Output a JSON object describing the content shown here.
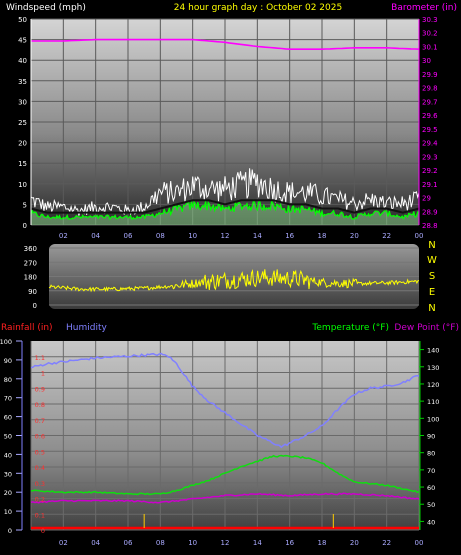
{
  "header": {
    "wind_title": "Windspeed (mph)",
    "date_title": "24 hour graph day : October 02 2025",
    "baro_title": "Barometer (in)"
  },
  "colors": {
    "bg": "#000000",
    "wind_gust": "#ffffff",
    "wind_avg": "#00ff00",
    "barometer": "#ff00ff",
    "direction": "#ffff00",
    "humidity": "#8080ff",
    "temperature": "#00cc00",
    "dewpoint": "#cc00cc",
    "rain": "#ff0000",
    "rain_ticks": "#ffcc00",
    "time_ticks": "#aaaaff"
  },
  "lower_labels": {
    "rain_title": "Rainfall (in)",
    "humidity_title": "Humidity",
    "temp_title": "Temperature (°F)",
    "dew_title": "Dew Point (°F)"
  },
  "chart_data": [
    {
      "type": "line",
      "x_ticks": [
        "02",
        "04",
        "06",
        "08",
        "10",
        "12",
        "14",
        "16",
        "18",
        "20",
        "22",
        "00"
      ],
      "y_left_ticks": [
        "0",
        "5",
        "10",
        "15",
        "20",
        "25",
        "30",
        "35",
        "40",
        "45",
        "50"
      ],
      "y_right_ticks": [
        "28.8",
        "28.9",
        "29",
        "29.1",
        "29.2",
        "29.3",
        "29.4",
        "29.5",
        "29.6",
        "29.7",
        "29.8",
        "29.9",
        "30",
        "30.1",
        "30.2",
        "30.3"
      ],
      "y_left_range": [
        0,
        50
      ],
      "y_right_range": [
        28.8,
        30.3
      ],
      "x_range": [
        0,
        24
      ],
      "series": [
        {
          "key": "gust",
          "x": [
            0,
            1,
            2,
            3,
            4,
            5,
            6,
            7,
            8,
            9,
            10,
            11,
            12,
            13,
            14,
            15,
            16,
            17,
            18,
            19,
            20,
            21,
            22,
            23,
            24
          ],
          "values": [
            7,
            5,
            5,
            4,
            5,
            5,
            4,
            5,
            9,
            9,
            11,
            10,
            10,
            11,
            12,
            10,
            9,
            9,
            8,
            7,
            6,
            7,
            6,
            6,
            7
          ]
        },
        {
          "key": "average",
          "x": [
            0,
            1,
            2,
            3,
            4,
            5,
            6,
            7,
            8,
            9,
            10,
            11,
            12,
            13,
            14,
            15,
            16,
            17,
            18,
            19,
            20,
            21,
            22,
            23,
            24
          ],
          "values": [
            3,
            2,
            2,
            2,
            2,
            2,
            2,
            2,
            3,
            4,
            5,
            5,
            4,
            5,
            5,
            5,
            4,
            4,
            3,
            3,
            2,
            3,
            3,
            2,
            3
          ]
        },
        {
          "key": "barometer",
          "x": [
            0,
            2,
            4,
            6,
            8,
            10,
            12,
            14,
            16,
            18,
            20,
            22,
            24
          ],
          "values": [
            30.14,
            30.14,
            30.15,
            30.15,
            30.15,
            30.15,
            30.13,
            30.1,
            30.08,
            30.08,
            30.09,
            30.09,
            30.08
          ]
        }
      ]
    },
    {
      "type": "line",
      "y_left_ticks": [
        "0",
        "90",
        "180",
        "270",
        "360"
      ],
      "y_right_ticks": [
        "N",
        "W",
        "S",
        "E",
        "N"
      ],
      "y_range": [
        0,
        360
      ],
      "x_range": [
        0,
        24
      ],
      "series": [
        {
          "key": "direction",
          "x": [
            0,
            2,
            4,
            6,
            8,
            10,
            12,
            14,
            16,
            18,
            20,
            22,
            24
          ],
          "values": [
            115,
            100,
            100,
            105,
            120,
            145,
            160,
            175,
            165,
            140,
            135,
            140,
            150
          ]
        }
      ]
    },
    {
      "type": "line",
      "x_ticks": [
        "02",
        "04",
        "06",
        "08",
        "10",
        "12",
        "14",
        "16",
        "18",
        "20",
        "22",
        "00"
      ],
      "y_humidity_ticks": [
        "0",
        "10",
        "20",
        "30",
        "40",
        "50",
        "60",
        "70",
        "80",
        "90",
        "100"
      ],
      "y_rain_ticks": [
        "0",
        "0.1",
        "0.2",
        "0.3",
        "0.4",
        "0.5",
        "0.6",
        "0.7",
        "0.8",
        "0.9",
        "1",
        "1.1"
      ],
      "y_temp_ticks": [
        "40",
        "50",
        "60",
        "70",
        "80",
        "90",
        "100",
        "110",
        "120",
        "130",
        "140"
      ],
      "humidity_range": [
        0,
        100
      ],
      "rain_range": [
        0,
        1.2
      ],
      "temp_range": [
        35,
        145
      ],
      "x_range": [
        0,
        24
      ],
      "series": [
        {
          "key": "humidity",
          "x": [
            0,
            1,
            2,
            4,
            6,
            8,
            8.5,
            9,
            10,
            11,
            12,
            13,
            14,
            15,
            15.5,
            16,
            17,
            18,
            19,
            20,
            21,
            22,
            23,
            24
          ],
          "values": [
            86,
            88,
            89,
            91,
            92,
            93,
            92,
            88,
            76,
            68,
            62,
            56,
            50,
            46,
            44,
            46,
            50,
            55,
            64,
            72,
            75,
            76,
            78,
            82
          ]
        },
        {
          "key": "temperature",
          "x": [
            0,
            2,
            4,
            6,
            8,
            9,
            10,
            11,
            12,
            13,
            14,
            15,
            16,
            17,
            18,
            19,
            20,
            21,
            22,
            23,
            24
          ],
          "values": [
            58,
            57,
            57,
            56,
            56,
            58,
            61,
            64,
            68,
            72,
            75,
            78,
            78,
            77,
            74,
            68,
            63,
            62,
            61,
            59,
            57
          ]
        },
        {
          "key": "dewpoint",
          "x": [
            0,
            2,
            4,
            6,
            8,
            10,
            12,
            14,
            16,
            18,
            20,
            22,
            24
          ],
          "values": [
            51,
            52,
            52,
            52,
            51,
            53,
            55,
            56,
            55,
            56,
            56,
            55,
            53
          ]
        },
        {
          "key": "rain",
          "x": [
            0,
            24
          ],
          "values": [
            0,
            0
          ]
        }
      ]
    }
  ]
}
